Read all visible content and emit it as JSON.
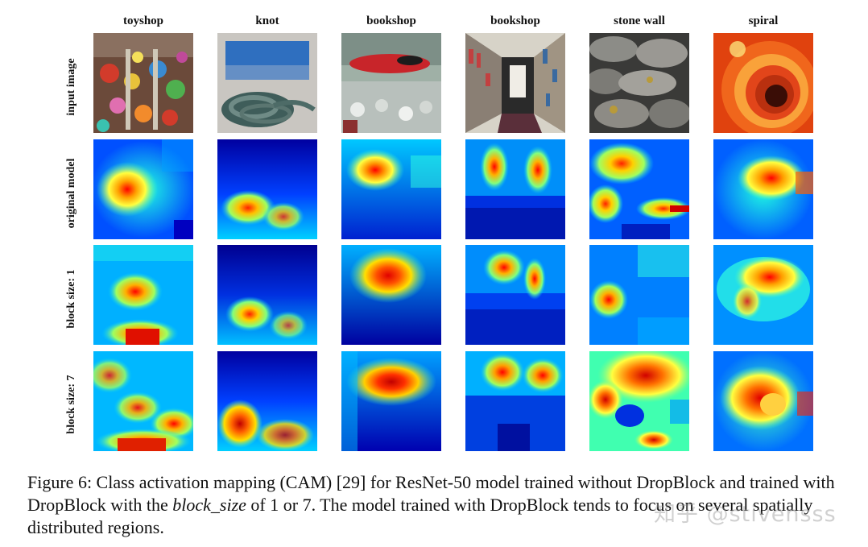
{
  "columns": [
    "toyshop",
    "knot",
    "bookshop",
    "bookshop",
    "stone wall",
    "spiral"
  ],
  "rows": [
    "input image",
    "original model",
    "block size: 1",
    "block size: 7"
  ],
  "caption": {
    "part1": "Figure 6: Class activation mapping (CAM) [29] for ResNet-50 model trained without DropBlock and trained with DropBlock with the ",
    "emph": "block_size",
    "part2": " of 1 or 7. The model trained with DropBlock tends to focus on several spatially distributed regions."
  },
  "watermark": "知乎 @stivensss",
  "colors": {
    "jet_low": "#00008f",
    "jet_mid": "#00ffff",
    "jet_high": "#ff0000"
  }
}
